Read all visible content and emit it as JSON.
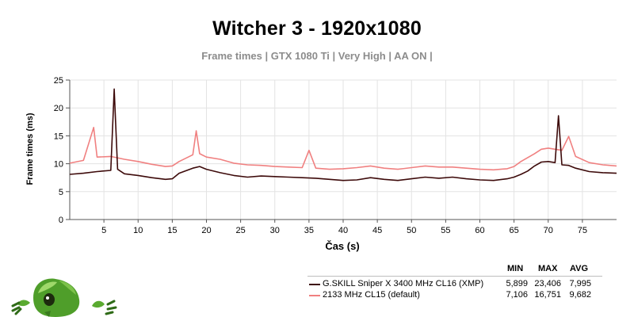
{
  "chart_data": {
    "type": "line",
    "title": "Witcher 3 - 1920x1080",
    "subtitle": "Frame times | GTX 1080 Ti | Very High | AA ON |",
    "xlabel": "Čas (s)",
    "ylabel": "Frame times (ms)",
    "xlim": [
      0,
      80
    ],
    "ylim": [
      0,
      25
    ],
    "xticks": [
      5,
      10,
      15,
      20,
      25,
      30,
      35,
      40,
      45,
      50,
      55,
      60,
      65,
      70,
      75
    ],
    "yticks": [
      0,
      5,
      10,
      15,
      20,
      25
    ],
    "grid": true,
    "legend_position": "bottom-right",
    "stat_headers": [
      "MIN",
      "MAX",
      "AVG"
    ],
    "series": [
      {
        "name": "G.SKILL Sniper X 3400 MHz CL16 (XMP)",
        "color": "#3d0a0a",
        "stats": [
          "5,899",
          "23,406",
          "7,995"
        ],
        "x": [
          0,
          2,
          4,
          6,
          6.5,
          7,
          8,
          10,
          12,
          14,
          15,
          16,
          18,
          19,
          20,
          22,
          24,
          26,
          28,
          30,
          32,
          34,
          36,
          38,
          40,
          42,
          44,
          46,
          48,
          50,
          52,
          54,
          56,
          58,
          60,
          62,
          64,
          65,
          66,
          67,
          68,
          69,
          70,
          71,
          71.5,
          72,
          73,
          74,
          76,
          78,
          80
        ],
        "y": [
          8.1,
          8.3,
          8.6,
          8.8,
          23.4,
          9.0,
          8.2,
          7.9,
          7.5,
          7.2,
          7.3,
          8.3,
          9.2,
          9.5,
          9.0,
          8.4,
          7.9,
          7.6,
          7.8,
          7.7,
          7.6,
          7.5,
          7.4,
          7.2,
          7.0,
          7.1,
          7.5,
          7.2,
          7.0,
          7.3,
          7.6,
          7.4,
          7.6,
          7.3,
          7.1,
          7.0,
          7.3,
          7.6,
          8.1,
          8.7,
          9.6,
          10.3,
          10.4,
          10.2,
          18.6,
          9.8,
          9.7,
          9.2,
          8.6,
          8.4,
          8.3
        ]
      },
      {
        "name": "2133 MHz CL15 (default)",
        "color": "#f08080",
        "stats": [
          "7,106",
          "16,751",
          "9,682"
        ],
        "x": [
          0,
          2,
          3.5,
          4,
          6,
          8,
          10,
          12,
          14,
          15,
          16,
          18,
          18.5,
          19,
          20,
          22,
          24,
          26,
          28,
          30,
          32,
          34,
          35,
          36,
          38,
          40,
          42,
          44,
          46,
          48,
          50,
          52,
          54,
          56,
          58,
          60,
          62,
          64,
          65,
          66,
          68,
          69,
          70,
          72,
          73,
          74,
          76,
          78,
          80
        ],
        "y": [
          10.1,
          10.6,
          16.5,
          11.2,
          11.3,
          10.8,
          10.4,
          9.9,
          9.5,
          9.6,
          10.4,
          11.6,
          15.9,
          11.8,
          11.2,
          10.8,
          10.1,
          9.8,
          9.7,
          9.5,
          9.4,
          9.3,
          12.4,
          9.2,
          9.0,
          9.1,
          9.3,
          9.6,
          9.2,
          9.0,
          9.3,
          9.6,
          9.4,
          9.4,
          9.2,
          9.0,
          8.9,
          9.1,
          9.5,
          10.4,
          11.8,
          12.6,
          12.8,
          12.4,
          14.9,
          11.3,
          10.2,
          9.8,
          9.6
        ]
      }
    ]
  }
}
